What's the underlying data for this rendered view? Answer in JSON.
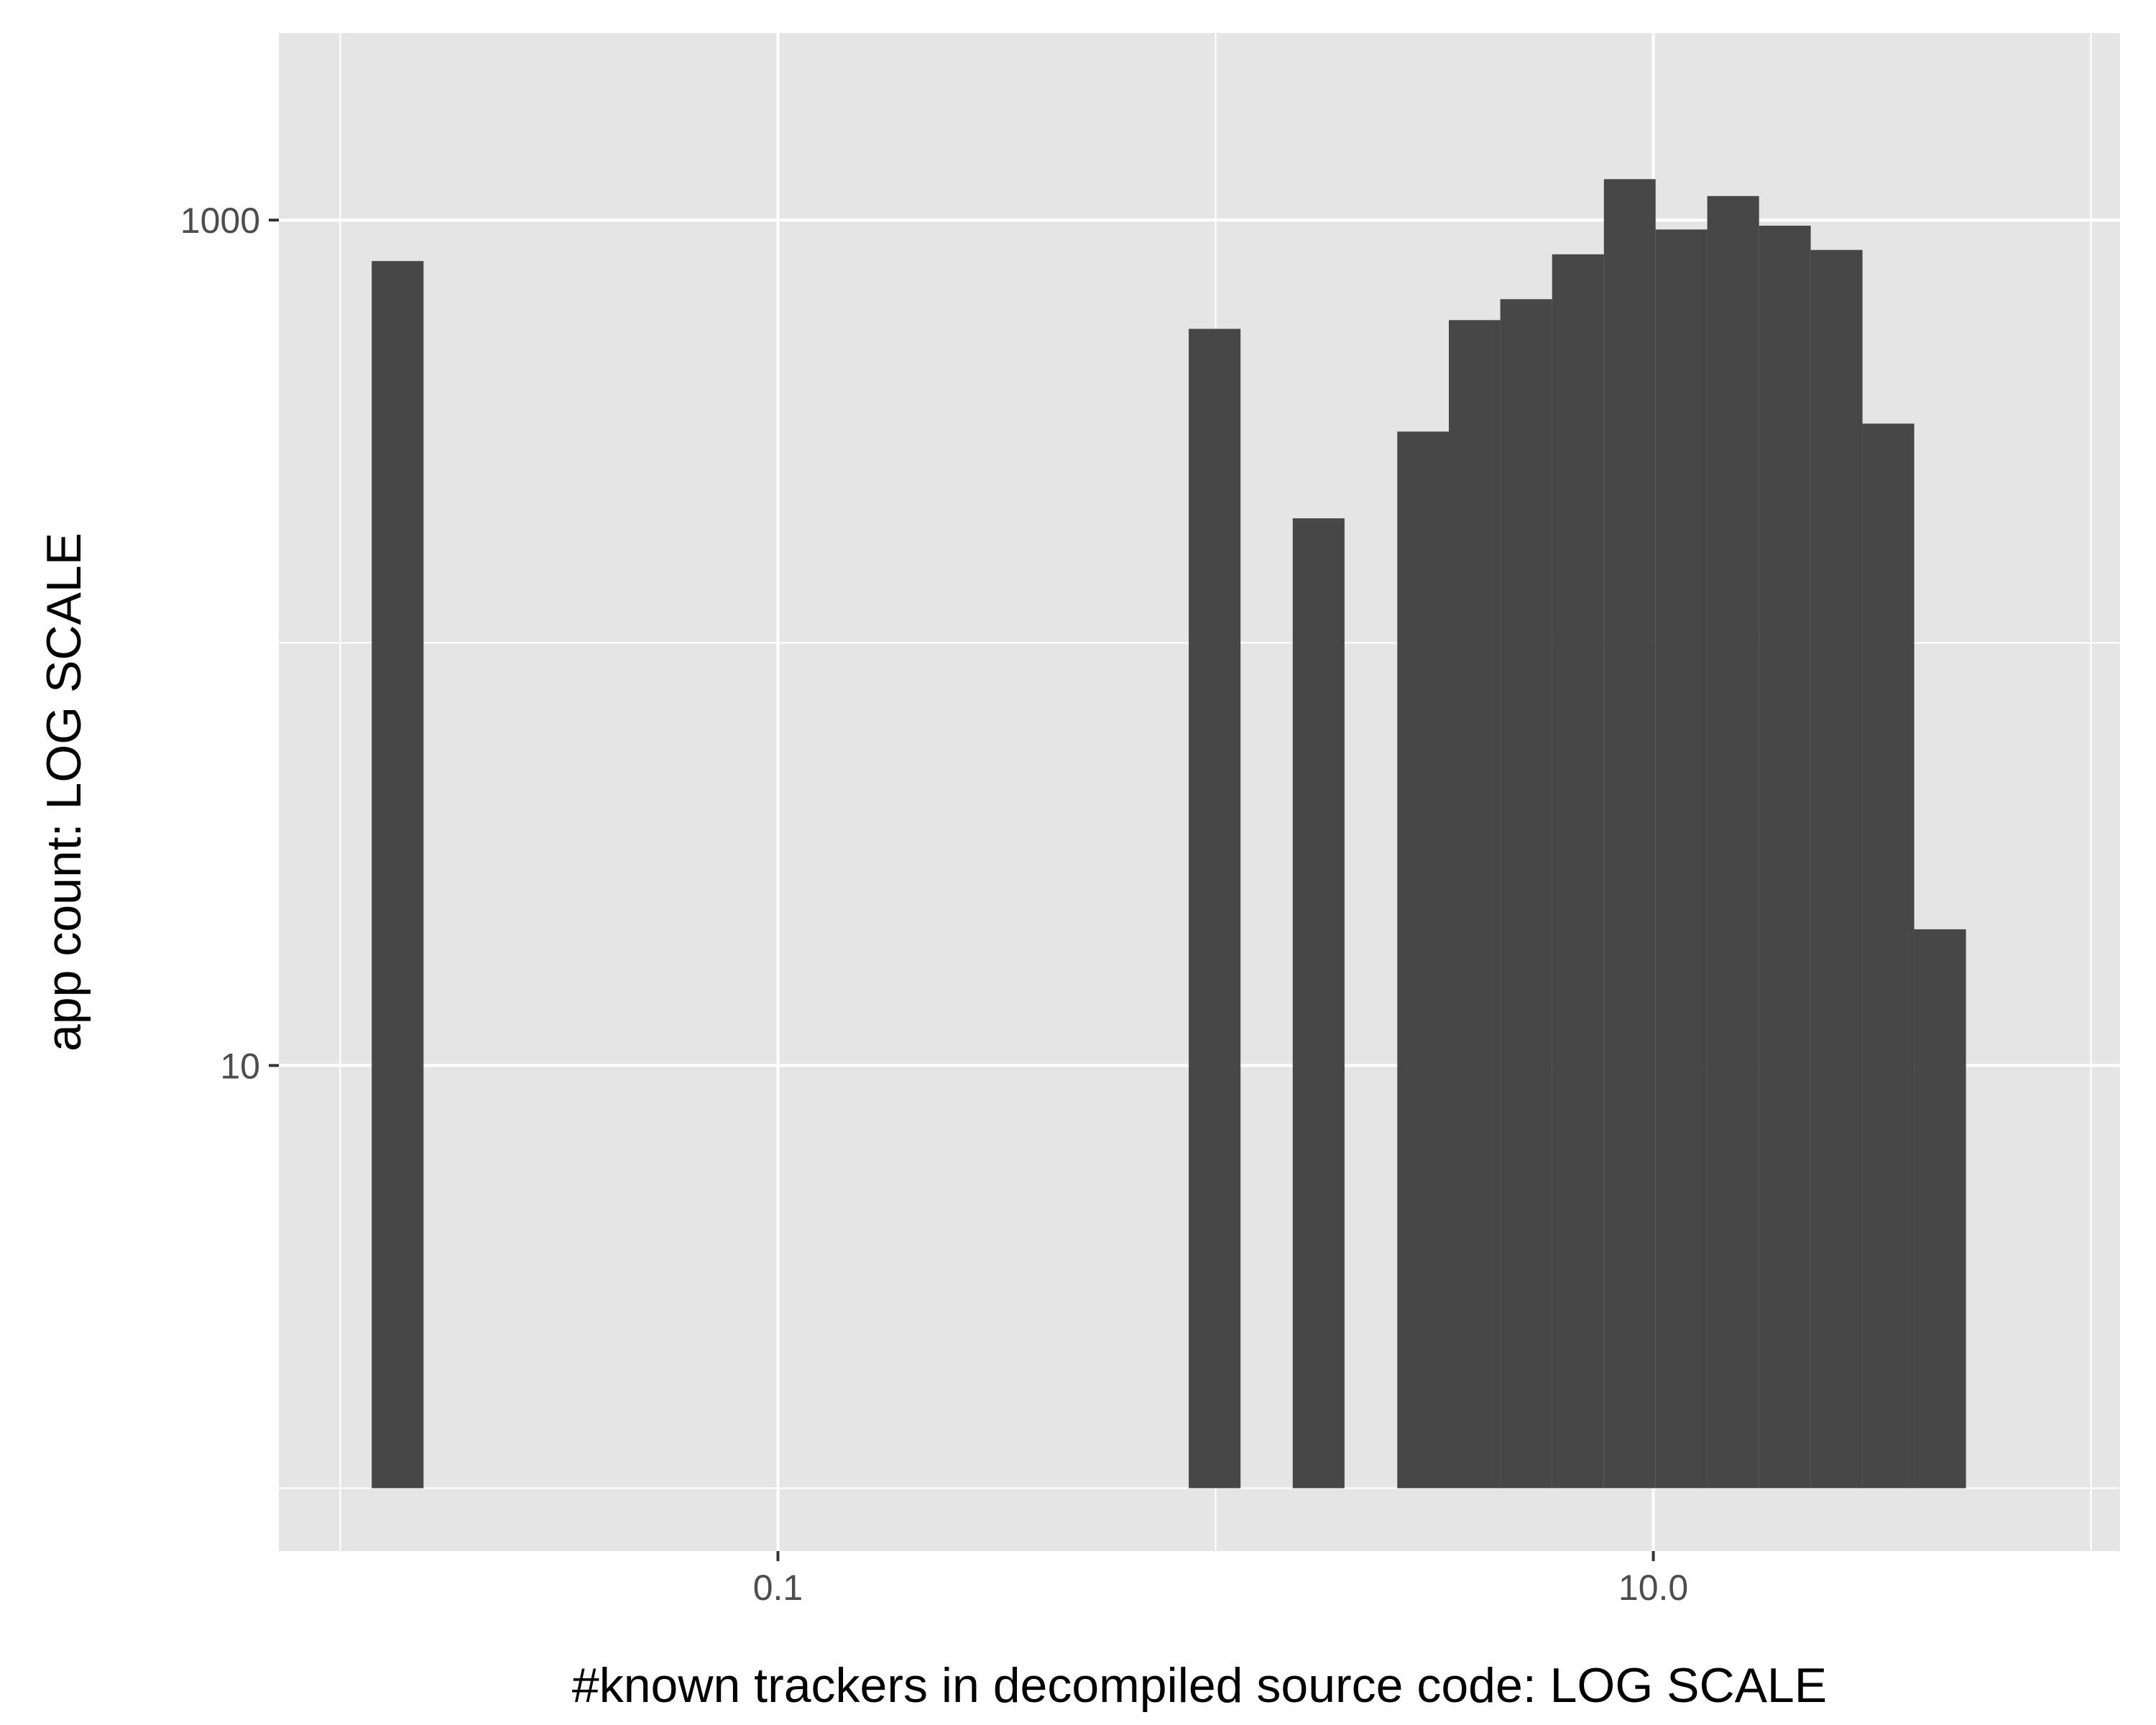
{
  "chart_data": {
    "type": "bar",
    "subtype": "histogram",
    "x_scale": "log10",
    "y_scale": "log10",
    "xlabel": "#known trackers in decompiled source code: LOG SCALE",
    "ylabel": "app count: LOG SCALE",
    "x_ticks": [
      {
        "value": 0.1,
        "label": "0.1"
      },
      {
        "value": 10,
        "label": "10.0"
      }
    ],
    "y_ticks": [
      {
        "value": 10,
        "label": "10"
      },
      {
        "value": 1000,
        "label": "1000"
      }
    ],
    "xlim": [
      0.00724,
      116.5
    ],
    "ylim": [
      0.71,
      2770
    ],
    "baseline": 1,
    "bars": [
      {
        "x0": 0.0118,
        "x1": 0.0155,
        "count": 800
      },
      {
        "x0": 0.868,
        "x1": 1.14,
        "count": 553
      },
      {
        "x0": 1.5,
        "x1": 1.97,
        "count": 197
      },
      {
        "x0": 2.6,
        "x1": 3.41,
        "count": 316
      },
      {
        "x0": 3.41,
        "x1": 4.47,
        "count": 580
      },
      {
        "x0": 4.47,
        "x1": 5.87,
        "count": 650
      },
      {
        "x0": 5.87,
        "x1": 7.71,
        "count": 830
      },
      {
        "x0": 7.71,
        "x1": 10.12,
        "count": 1250
      },
      {
        "x0": 10.12,
        "x1": 13.28,
        "count": 950
      },
      {
        "x0": 13.28,
        "x1": 17.44,
        "count": 1140
      },
      {
        "x0": 17.44,
        "x1": 22.89,
        "count": 970
      },
      {
        "x0": 22.89,
        "x1": 30.05,
        "count": 850
      },
      {
        "x0": 30.05,
        "x1": 39.45,
        "count": 330
      },
      {
        "x0": 39.45,
        "x1": 51.79,
        "count": 21
      }
    ],
    "grid": true,
    "legend": "none",
    "colors": {
      "panel": "#e5e5e5",
      "bar": "#474747",
      "grid": "#ffffff",
      "tick": "#333333"
    }
  }
}
